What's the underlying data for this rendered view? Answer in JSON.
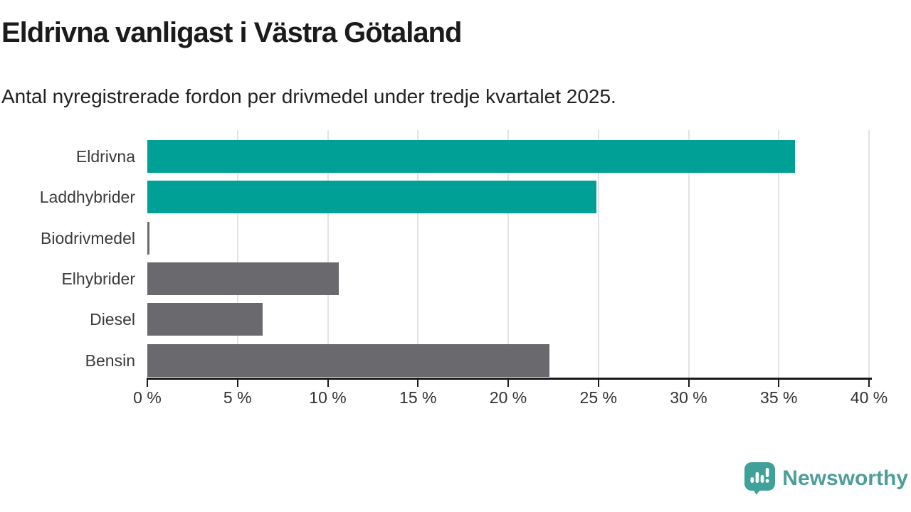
{
  "header": {
    "title": "Eldrivna vanligast i Västra Götaland",
    "subtitle": "Antal nyregistrerade fordon per drivmedel under tredje kvartalet 2025."
  },
  "chart_data": {
    "type": "bar",
    "orientation": "horizontal",
    "title": "Eldrivna vanligast i Västra Götaland",
    "subtitle": "Antal nyregistrerade fordon per drivmedel under tredje kvartalet 2025.",
    "categories": [
      "Eldrivna",
      "Laddhybrider",
      "Biodrivmedel",
      "Elhybrider",
      "Diesel",
      "Bensin"
    ],
    "values": [
      35.9,
      24.9,
      0.1,
      10.6,
      6.4,
      22.3
    ],
    "unit": "%",
    "xlim": [
      0,
      40
    ],
    "x_ticks": [
      0,
      5,
      10,
      15,
      20,
      25,
      30,
      35,
      40
    ],
    "x_tick_labels": [
      "0 %",
      "5 %",
      "10 %",
      "15 %",
      "20 %",
      "25 %",
      "30 %",
      "35 %",
      "40 %"
    ],
    "grid": true,
    "legend": "none",
    "bar_colors": [
      "#00A096",
      "#00A096",
      "#6A696E",
      "#6A696E",
      "#6A696E",
      "#6A696E"
    ],
    "highlight_color": "#00A096",
    "default_color": "#6A696E",
    "gridline_color": "#e3e3e3",
    "axis_color": "#1a1a1a"
  },
  "footer": {
    "brand": "Newsworthy",
    "brand_color": "#4D9E9A",
    "logo_icon_color": "#3FA19A",
    "logo_icon": "bar-chart-speech-bubble-icon"
  }
}
